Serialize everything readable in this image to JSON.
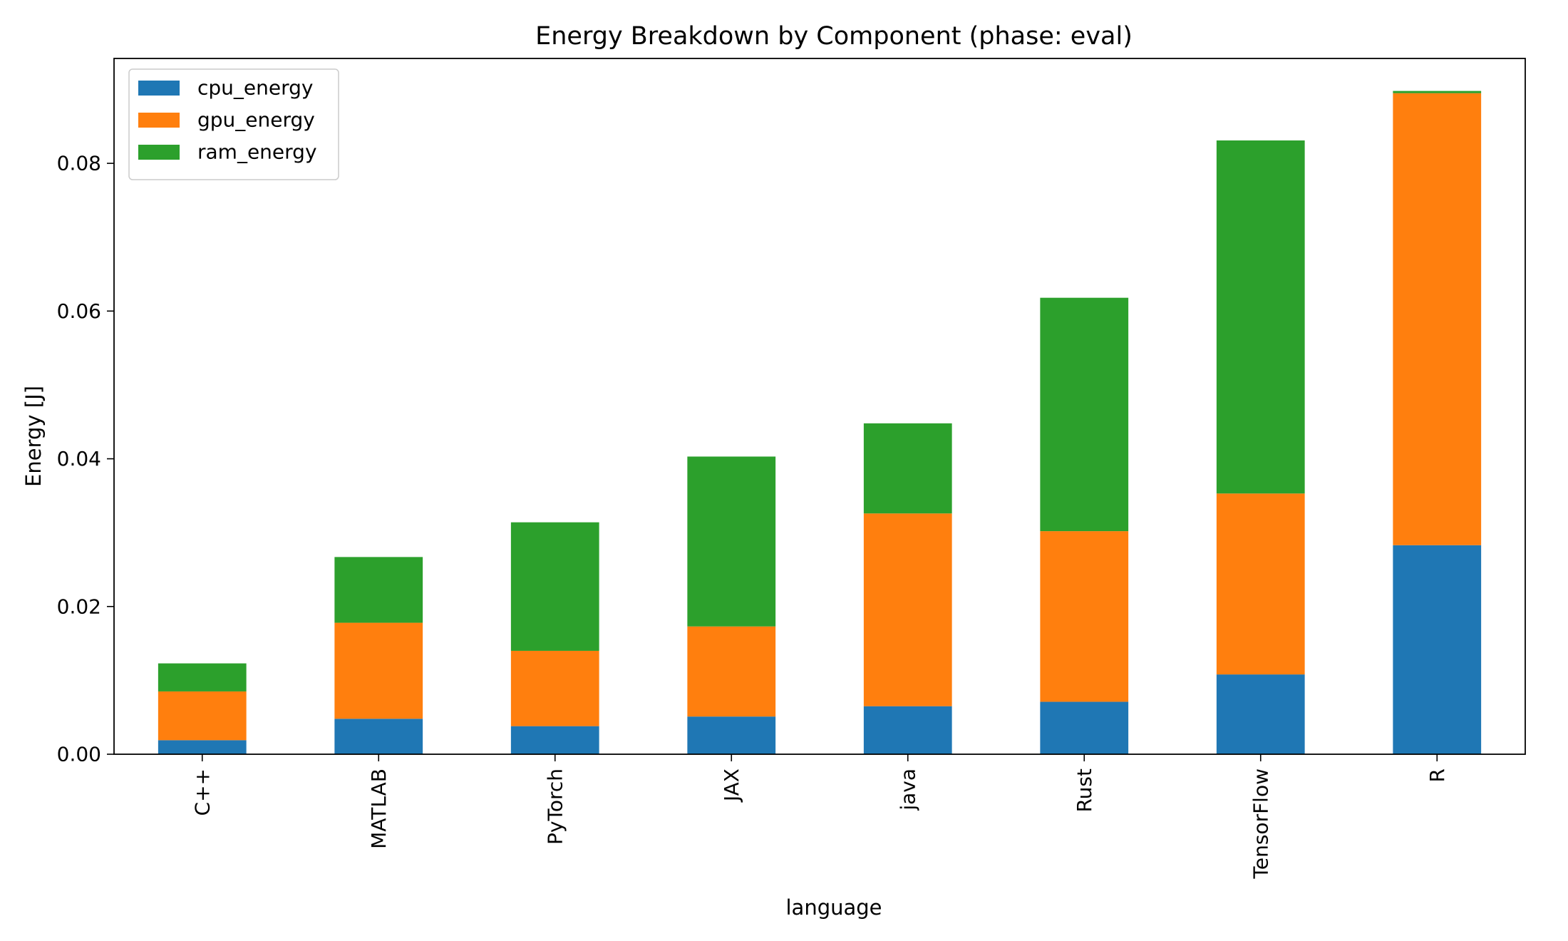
{
  "chart_data": {
    "type": "bar",
    "stacked": true,
    "title": "Energy Breakdown by Component (phase: eval)",
    "xlabel": "language",
    "ylabel": "Energy [J]",
    "categories": [
      "C++",
      "MATLAB",
      "PyTorch",
      "JAX",
      "java",
      "Rust",
      "TensorFlow",
      "R"
    ],
    "series": [
      {
        "name": "cpu_energy",
        "color": "#1f77b4",
        "values": [
          0.0019,
          0.0048,
          0.0038,
          0.0051,
          0.0065,
          0.0071,
          0.0108,
          0.0283
        ]
      },
      {
        "name": "gpu_energy",
        "color": "#ff7f0e",
        "values": [
          0.0066,
          0.013,
          0.0102,
          0.0122,
          0.0261,
          0.0231,
          0.0245,
          0.0612
        ]
      },
      {
        "name": "ram_energy",
        "color": "#2ca02c",
        "values": [
          0.0038,
          0.0089,
          0.0174,
          0.023,
          0.0122,
          0.0316,
          0.0478,
          0.0003
        ]
      }
    ],
    "ylim": [
      0,
      0.0942
    ],
    "yticks": [
      0.0,
      0.02,
      0.04,
      0.06,
      0.08
    ],
    "ytick_labels": [
      "0.00",
      "0.02",
      "0.04",
      "0.06",
      "0.08"
    ],
    "grid": false,
    "legend_position": "upper left"
  }
}
